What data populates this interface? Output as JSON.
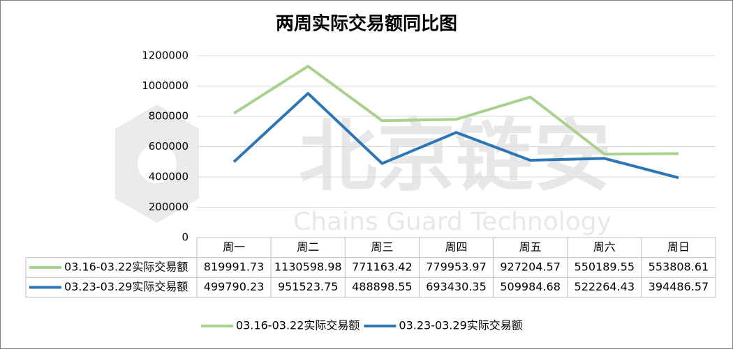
{
  "chart_data": {
    "type": "line",
    "title": "两周实际交易额同比图",
    "categories": [
      "周一",
      "周二",
      "周三",
      "周四",
      "周五",
      "周六",
      "周日"
    ],
    "series": [
      {
        "name": "03.16-03.22实际交易额",
        "color": "#a9d18e",
        "values": [
          819991.73,
          1130598.98,
          771163.42,
          779953.97,
          927204.57,
          550189.55,
          553808.61
        ]
      },
      {
        "name": "03.23-03.29实际交易额",
        "color": "#2e75b6",
        "values": [
          499790.23,
          951523.75,
          488898.55,
          693430.35,
          509984.68,
          522264.43,
          394486.57
        ]
      }
    ],
    "ylim": [
      0,
      1200000
    ],
    "yticks": [
      0,
      200000,
      400000,
      600000,
      800000,
      1000000,
      1200000
    ],
    "grid": true,
    "legend": "bottom",
    "watermark": [
      "北京链安",
      "Chains Guard Technology"
    ]
  }
}
